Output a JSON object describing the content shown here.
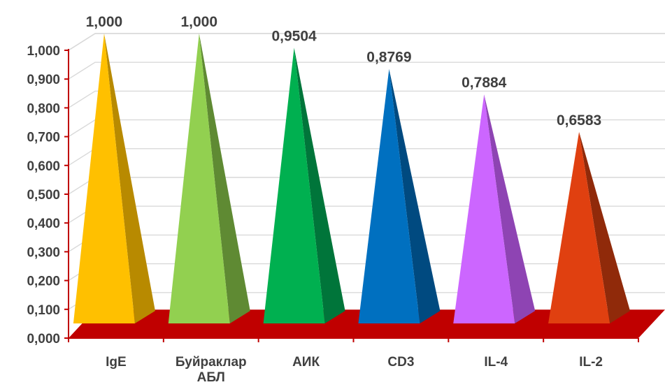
{
  "chart_data": {
    "type": "bar",
    "style": "3d-pyramid",
    "categories": [
      "IgE",
      "Буйраклар АБЛ",
      "АИК",
      "CD3",
      "IL-4",
      "IL-2"
    ],
    "category_lines": [
      [
        "IgE"
      ],
      [
        "Буйраклар",
        "АБЛ"
      ],
      [
        "АИК"
      ],
      [
        "CD3"
      ],
      [
        "IL-4"
      ],
      [
        "IL-2"
      ]
    ],
    "values": [
      1.0,
      1.0,
      0.9504,
      0.8769,
      0.7884,
      0.6583
    ],
    "value_labels": [
      "1,000",
      "1,000",
      "0,9504",
      "0,8769",
      "0,7884",
      "0,6583"
    ],
    "yticks": [
      "0,000",
      "0,100",
      "0,200",
      "0,300",
      "0,400",
      "0,500",
      "0,600",
      "0,700",
      "0,800",
      "0,900",
      "1,000"
    ],
    "ylim": [
      0,
      1.0
    ],
    "grid": true,
    "legend": "none",
    "title": "",
    "xlabel": "",
    "ylabel": "",
    "colors": {
      "front": [
        "#FFC000",
        "#92D050",
        "#00B050",
        "#0070C0",
        "#CC66FF",
        "#E04010"
      ],
      "side": [
        "#B88A00",
        "#5F8A33",
        "#00753A",
        "#004A80",
        "#8E44B3",
        "#902A0A"
      ],
      "floor": "#C00000",
      "axis": "#C00000",
      "grid": "#D9D9D9"
    }
  }
}
